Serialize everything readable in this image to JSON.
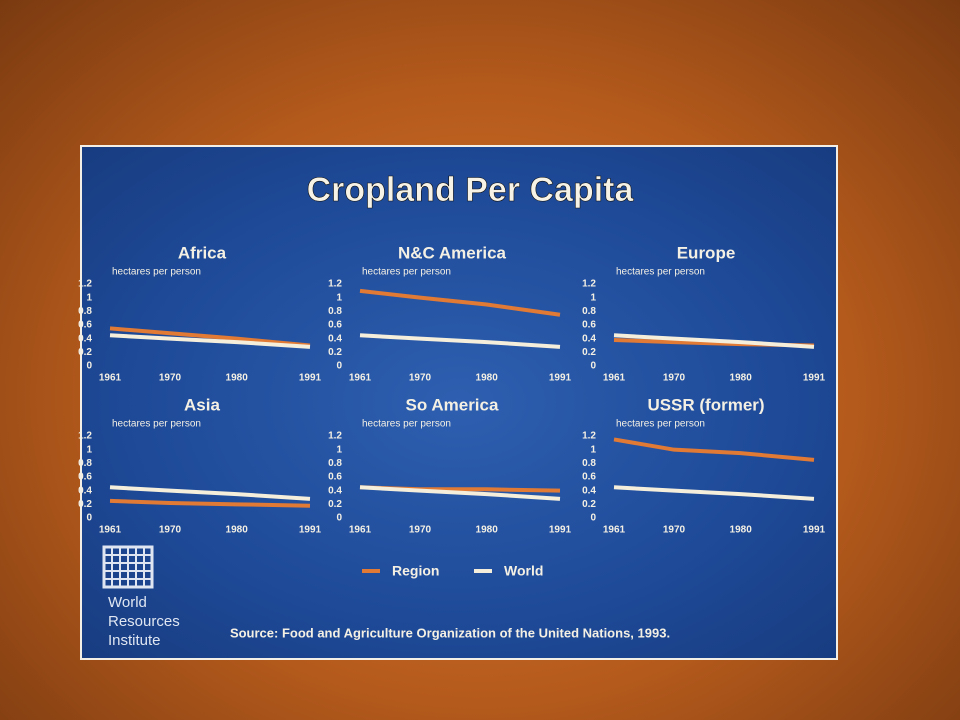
{
  "title": "Cropland Per Capita",
  "source": "Source: Food and Agriculture Organization of the United Nations, 1993.",
  "logo": [
    "World",
    "Resources",
    "Institute"
  ],
  "legend": [
    {
      "name": "Region",
      "color": "#e07a35"
    },
    {
      "name": "World",
      "color": "#f4eedb"
    }
  ],
  "chart_data": [
    {
      "type": "line",
      "title": "Africa",
      "ylabel": "hectares per person",
      "x": [
        1961,
        1970,
        1980,
        1991
      ],
      "xlim": [
        1961,
        1991
      ],
      "xticks": [
        1961,
        1970,
        1980,
        1991
      ],
      "ylim": [
        0,
        1.2
      ],
      "yticks": [
        0,
        0.2,
        0.4,
        0.6,
        0.8,
        1,
        1.2
      ],
      "series": [
        {
          "values": [
            0.55,
            0.48,
            0.4,
            0.3
          ]
        },
        {
          "values": [
            0.45,
            0.4,
            0.35,
            0.28
          ]
        }
      ]
    },
    {
      "type": "line",
      "title": "N&C America",
      "ylabel": "hectares per person",
      "x": [
        1961,
        1970,
        1980,
        1991
      ],
      "xlim": [
        1961,
        1991
      ],
      "xticks": [
        1961,
        1970,
        1980,
        1991
      ],
      "ylim": [
        0,
        1.2
      ],
      "yticks": [
        0,
        0.2,
        0.4,
        0.6,
        0.8,
        1,
        1.2
      ],
      "series": [
        {
          "values": [
            1.1,
            1.0,
            0.9,
            0.75
          ]
        },
        {
          "values": [
            0.45,
            0.4,
            0.35,
            0.28
          ]
        }
      ]
    },
    {
      "type": "line",
      "title": "Europe",
      "ylabel": "hectares per person",
      "x": [
        1961,
        1970,
        1980,
        1991
      ],
      "xlim": [
        1961,
        1991
      ],
      "xticks": [
        1961,
        1970,
        1980,
        1991
      ],
      "ylim": [
        0,
        1.2
      ],
      "yticks": [
        0,
        0.2,
        0.4,
        0.6,
        0.8,
        1,
        1.2
      ],
      "series": [
        {
          "values": [
            0.38,
            0.35,
            0.32,
            0.3
          ]
        },
        {
          "values": [
            0.45,
            0.4,
            0.35,
            0.28
          ]
        }
      ]
    },
    {
      "type": "line",
      "title": "Asia",
      "ylabel": "hectares per person",
      "x": [
        1961,
        1970,
        1980,
        1991
      ],
      "xlim": [
        1961,
        1991
      ],
      "xticks": [
        1961,
        1970,
        1980,
        1991
      ],
      "ylim": [
        0,
        1.2
      ],
      "yticks": [
        0,
        0.2,
        0.4,
        0.6,
        0.8,
        1,
        1.2
      ],
      "series": [
        {
          "values": [
            0.25,
            0.22,
            0.2,
            0.18
          ]
        },
        {
          "values": [
            0.45,
            0.4,
            0.35,
            0.28
          ]
        }
      ]
    },
    {
      "type": "line",
      "title": "So America",
      "ylabel": "hectares per person",
      "x": [
        1961,
        1970,
        1980,
        1991
      ],
      "xlim": [
        1961,
        1991
      ],
      "xticks": [
        1961,
        1970,
        1980,
        1991
      ],
      "ylim": [
        0,
        1.2
      ],
      "yticks": [
        0,
        0.2,
        0.4,
        0.6,
        0.8,
        1,
        1.2
      ],
      "series": [
        {
          "values": [
            0.45,
            0.42,
            0.42,
            0.4
          ]
        },
        {
          "values": [
            0.45,
            0.4,
            0.35,
            0.28
          ]
        }
      ]
    },
    {
      "type": "line",
      "title": "USSR (former)",
      "ylabel": "hectares per person",
      "x": [
        1961,
        1970,
        1980,
        1991
      ],
      "xlim": [
        1961,
        1991
      ],
      "xticks": [
        1961,
        1970,
        1980,
        1991
      ],
      "ylim": [
        0,
        1.2
      ],
      "yticks": [
        0,
        0.2,
        0.4,
        0.6,
        0.8,
        1,
        1.2
      ],
      "series": [
        {
          "values": [
            1.15,
            1.0,
            0.95,
            0.85
          ]
        },
        {
          "values": [
            0.45,
            0.4,
            0.35,
            0.28
          ]
        }
      ]
    }
  ]
}
